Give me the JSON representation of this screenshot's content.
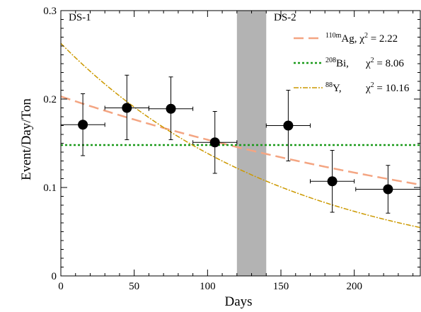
{
  "chart_data": {
    "type": "scatter",
    "xlabel": "Days",
    "ylabel": "Event/Day/Ton",
    "xlim": [
      0,
      245
    ],
    "ylim": [
      0,
      0.3
    ],
    "x_ticks": [
      0,
      50,
      100,
      150,
      200
    ],
    "y_ticks": [
      0,
      0.1,
      0.2,
      0.3
    ],
    "y_tick_labels": [
      "0",
      "0.1",
      "0.2",
      "0.3"
    ],
    "grid": false,
    "legend_position": "top-right",
    "regions": [
      {
        "label": "DS-1"
      },
      {
        "label": "DS-2"
      }
    ],
    "shaded_band": {
      "x_from": 120,
      "x_to": 140,
      "color": "#b3b3b3"
    },
    "points": [
      {
        "x": 15,
        "y": 0.171,
        "xerr": 15,
        "yerr_low": 0.035,
        "yerr_high": 0.035
      },
      {
        "x": 45,
        "y": 0.19,
        "xerr": 15,
        "yerr_low": 0.036,
        "yerr_high": 0.037
      },
      {
        "x": 75,
        "y": 0.189,
        "xerr": 15,
        "yerr_low": 0.035,
        "yerr_high": 0.036
      },
      {
        "x": 105,
        "y": 0.151,
        "xerr": 15,
        "yerr_low": 0.035,
        "yerr_high": 0.035
      },
      {
        "x": 155,
        "y": 0.17,
        "xerr": 15,
        "yerr_low": 0.04,
        "yerr_high": 0.04
      },
      {
        "x": 185,
        "y": 0.107,
        "xerr": 15,
        "yerr_low": 0.035,
        "yerr_high": 0.035
      },
      {
        "x": 223,
        "y": 0.098,
        "xerr": 22,
        "yerr_low": 0.027,
        "yerr_high": 0.027
      }
    ],
    "fits": [
      {
        "isotope_mass": "110m",
        "isotope": "Ag,",
        "chi2_label": "χ",
        "chi2_value": "= 2.22",
        "color": "#f4a582",
        "dash": "14,7",
        "model": "exp",
        "a": 0.203,
        "tau": 362
      },
      {
        "isotope_mass": "208",
        "isotope": "Bi,",
        "chi2_label": "χ",
        "chi2_value": "= 8.06",
        "color": "#1a9a1a",
        "dash": "3,3",
        "model": "const",
        "a": 0.148
      },
      {
        "isotope_mass": "88",
        "isotope": "Y,",
        "chi2_label": "χ",
        "chi2_value": "= 10.16",
        "color": "#cc9900",
        "dash": "7,2,2,2",
        "model": "exp",
        "a": 0.263,
        "tau": 156
      }
    ]
  }
}
